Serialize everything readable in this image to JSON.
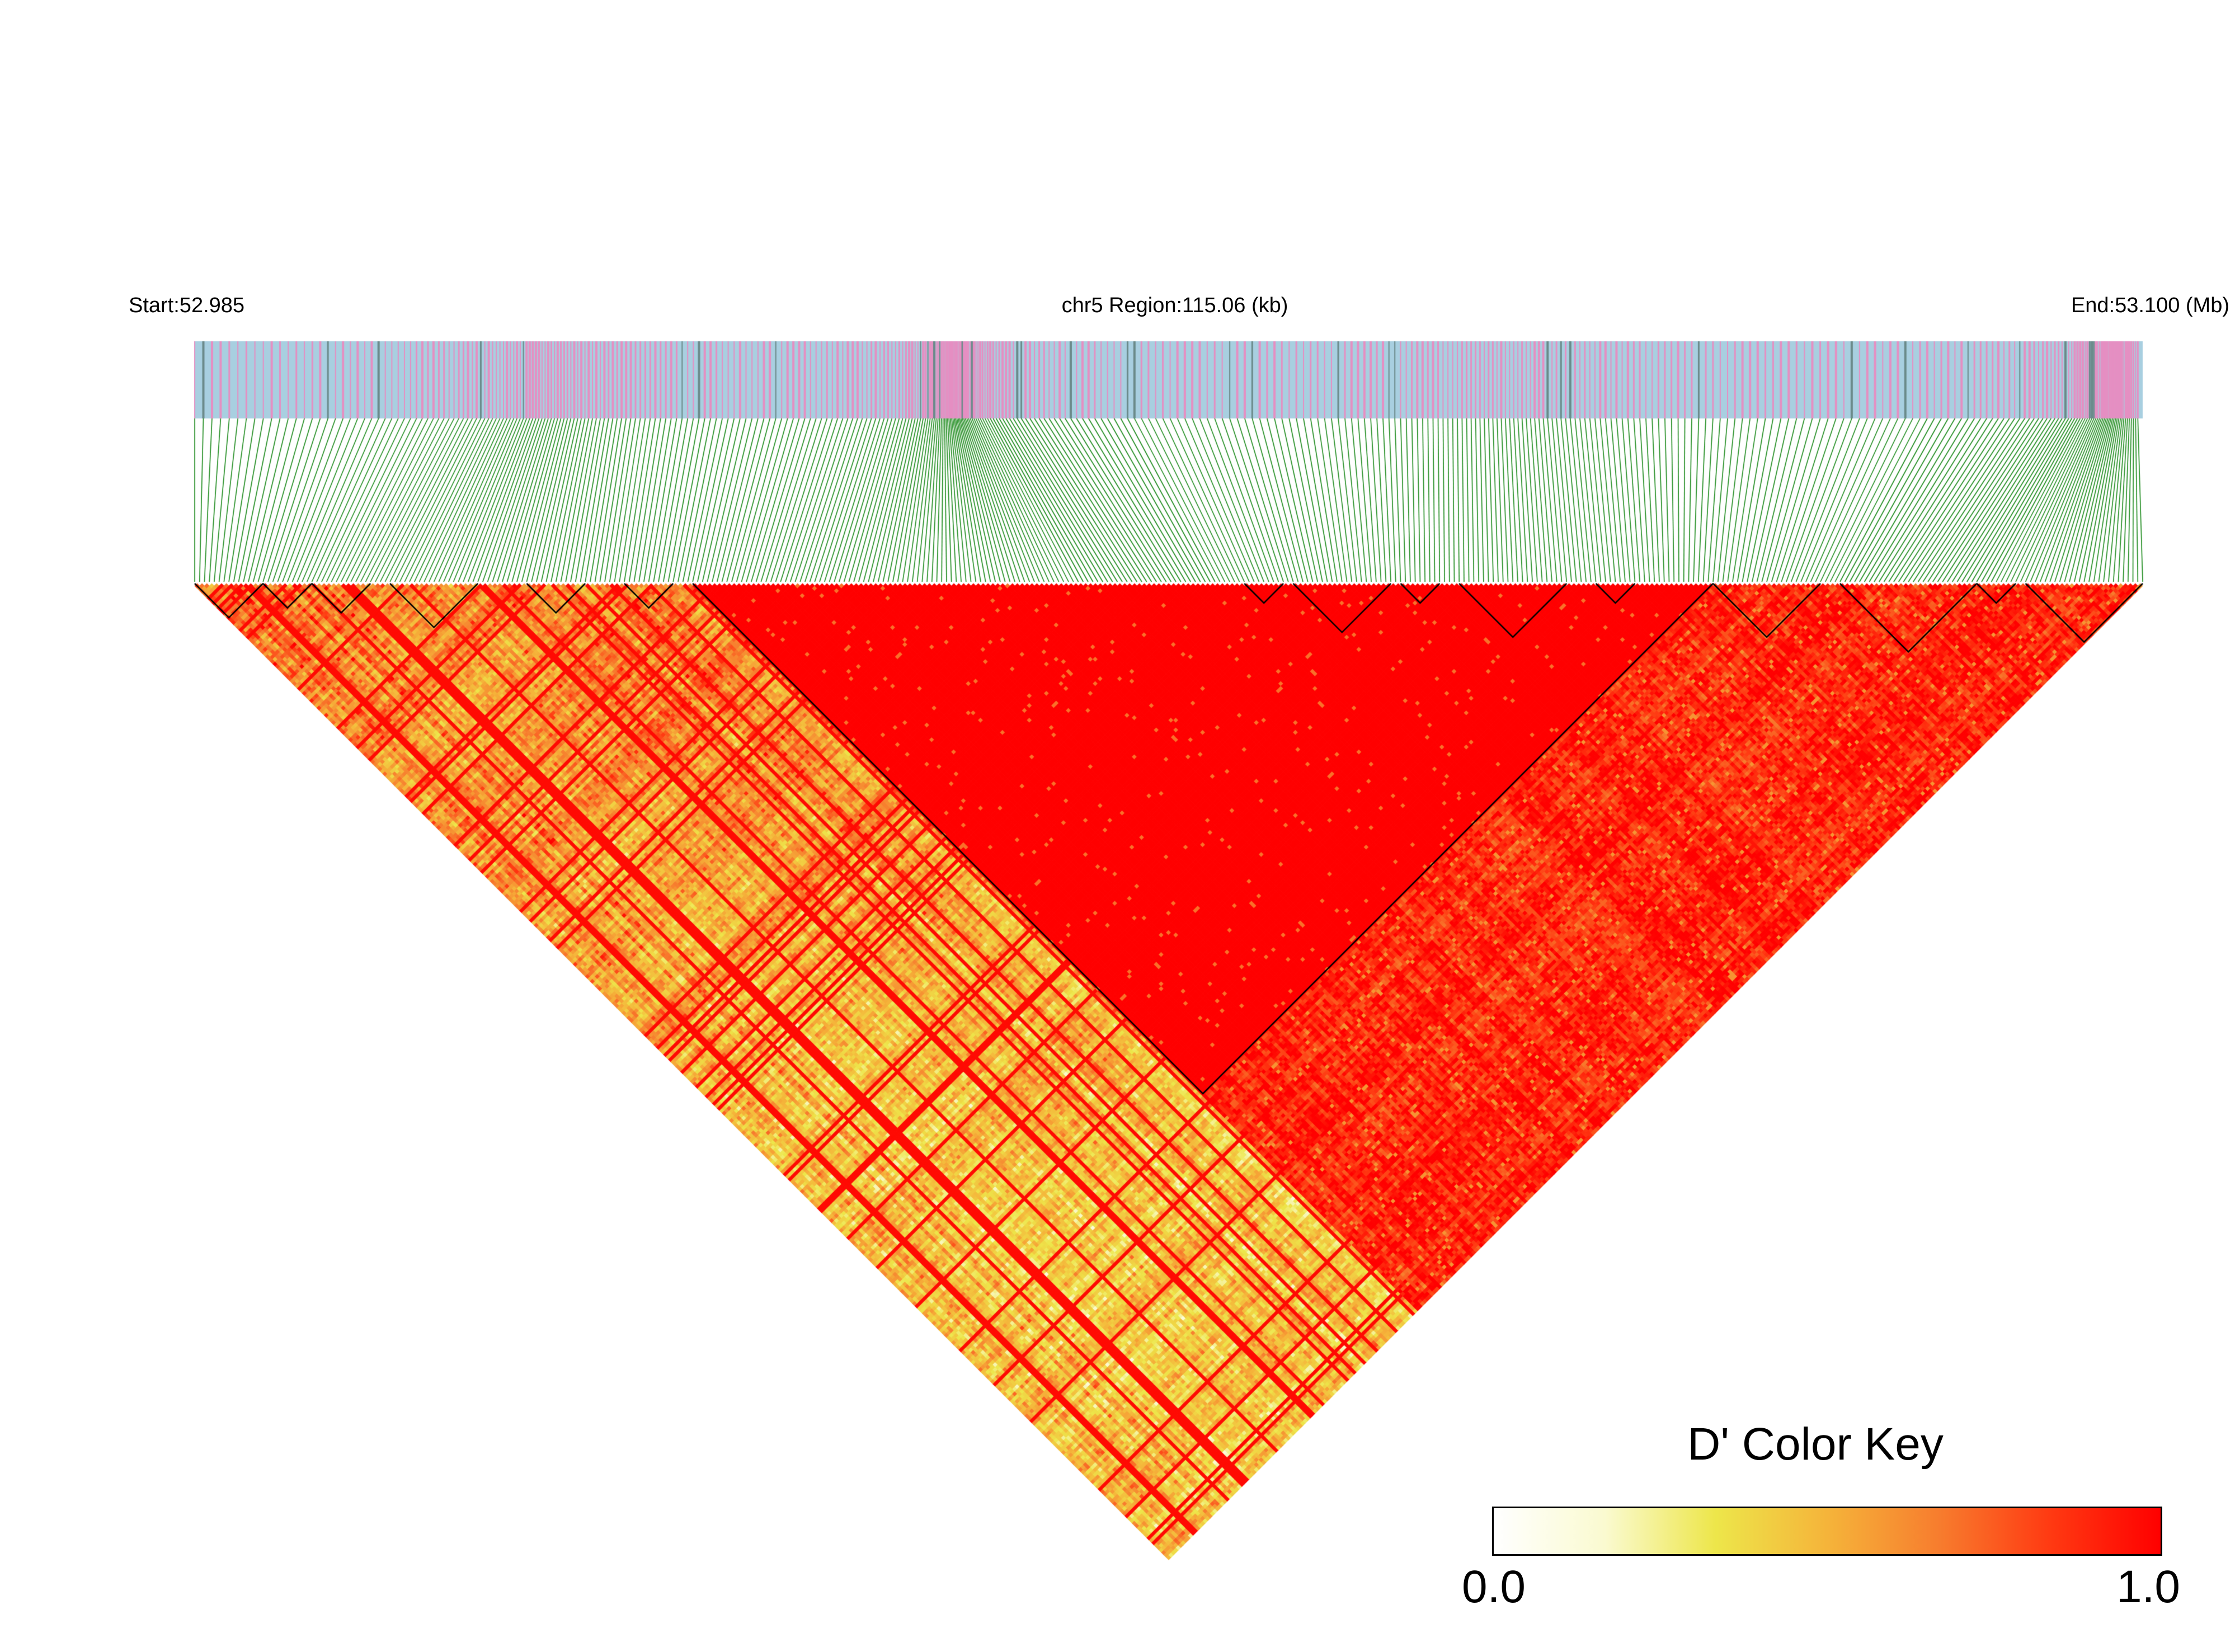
{
  "header": {
    "start_label": "Start:52.985",
    "region_label": "chr5 Region:115.06 (kb)",
    "end_label": "End:53.100 (Mb)"
  },
  "color_key": {
    "title": "D' Color Key",
    "min_label": "0.0",
    "max_label": "1.0",
    "stops": [
      "#ffffff",
      "#fafad0",
      "#ede64a",
      "#f5b43a",
      "#f77d2e",
      "#ff3a12",
      "#ff0000"
    ]
  },
  "colors": {
    "snp_track_background": "#a8cfe0",
    "snp_marker_pink": "#e58fc2",
    "snp_marker_gray": "#6b8a8a",
    "connector_lines": "#1c8a1c",
    "block_outline": "#000000"
  },
  "chart_data": {
    "type": "heatmap",
    "description_of_values": "pairwise D' linkage disequilibrium",
    "region": {
      "chromosome": "chr5",
      "start_mb": 52.985,
      "end_mb": 53.1,
      "length_kb": 115.06
    },
    "value_range": [
      0.0,
      1.0
    ],
    "snp_count_approx": 400,
    "haplotype_blocks_top_fraction": [
      [
        0.0,
        0.035
      ],
      [
        0.035,
        0.06
      ],
      [
        0.06,
        0.09
      ],
      [
        0.1,
        0.145
      ],
      [
        0.17,
        0.2
      ],
      [
        0.22,
        0.245
      ],
      [
        0.255,
        0.78
      ],
      [
        0.54,
        0.56
      ],
      [
        0.565,
        0.615
      ],
      [
        0.62,
        0.64
      ],
      [
        0.65,
        0.705
      ],
      [
        0.72,
        0.74
      ],
      [
        0.78,
        0.835
      ],
      [
        0.845,
        0.915
      ],
      [
        0.915,
        0.935
      ],
      [
        0.94,
        1.0
      ]
    ]
  }
}
